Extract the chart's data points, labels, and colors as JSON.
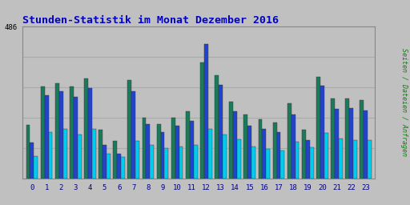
{
  "title": "Stunden-Statistik im Monat Dezember 2016",
  "title_color": "#0000cc",
  "title_fontsize": 9.5,
  "ylabel": "Seiten / Dateien / Anfragen",
  "ylabel_color": "#008800",
  "xlabel_color": "#000088",
  "background_color": "#c0c0c0",
  "plot_bg_color": "#c0c0c0",
  "grid_color": "#aaaaaa",
  "hours": [
    0,
    1,
    2,
    3,
    4,
    5,
    6,
    7,
    8,
    9,
    10,
    11,
    12,
    13,
    14,
    15,
    16,
    17,
    18,
    19,
    20,
    21,
    22,
    23
  ],
  "seiten": [
    170,
    295,
    305,
    295,
    320,
    155,
    120,
    315,
    195,
    175,
    195,
    215,
    370,
    330,
    245,
    205,
    190,
    180,
    240,
    155,
    325,
    255,
    255,
    250
  ],
  "dateien": [
    115,
    265,
    278,
    262,
    290,
    108,
    80,
    280,
    175,
    148,
    168,
    185,
    430,
    300,
    215,
    168,
    158,
    148,
    205,
    122,
    296,
    223,
    225,
    218
  ],
  "anfragen": [
    72,
    148,
    158,
    140,
    158,
    80,
    68,
    120,
    108,
    98,
    102,
    108,
    158,
    140,
    124,
    102,
    95,
    90,
    118,
    100,
    145,
    128,
    122,
    122
  ],
  "color_seiten": "#1a7a5a",
  "color_dateien": "#2244cc",
  "color_anfragen": "#00ccee",
  "ylim_max": 486,
  "ytick_val": 486,
  "bar_width": 0.27
}
